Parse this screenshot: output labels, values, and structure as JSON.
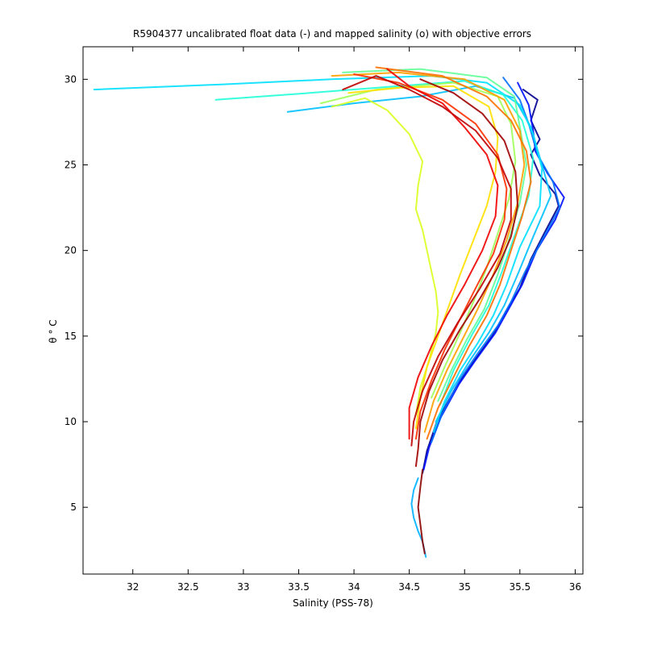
{
  "chart_data": {
    "type": "line",
    "title": "R5904377 uncalibrated float data (-) and mapped salinity (o) with objective errors",
    "xlabel": "Salinity (PSS-78)",
    "ylabel": "θ ° C",
    "xlim": [
      31.55,
      36.07
    ],
    "ylim": [
      1.1,
      31.9
    ],
    "xticks": [
      32,
      32.5,
      33,
      33.5,
      34,
      34.5,
      35,
      35.5,
      36
    ],
    "yticks": [
      5,
      10,
      15,
      20,
      25,
      30
    ],
    "xtick_labels": [
      "32",
      "32.5",
      "33",
      "33.5",
      "34",
      "34.5",
      "35",
      "35.5",
      "36"
    ],
    "ytick_labels": [
      "5",
      "10",
      "15",
      "20",
      "25",
      "30"
    ],
    "grid": false,
    "colormap": "jet",
    "series": [
      {
        "color": "#00008f",
        "points": [
          [
            35.53,
            29.4
          ],
          [
            35.66,
            28.8
          ],
          [
            35.6,
            27.6
          ],
          [
            35.68,
            26.5
          ],
          [
            35.6,
            25.6
          ],
          [
            35.68,
            24.4
          ],
          [
            35.82,
            23.3
          ],
          [
            35.85,
            22.6
          ],
          [
            35.72,
            21.0
          ],
          [
            35.6,
            19.5
          ],
          [
            35.5,
            17.8
          ],
          [
            35.38,
            16.5
          ],
          [
            35.25,
            15.0
          ],
          [
            35.08,
            13.5
          ],
          [
            34.92,
            12.0
          ],
          [
            34.75,
            10.0
          ],
          [
            34.66,
            8.3
          ],
          [
            34.62,
            7.0
          ]
        ]
      },
      {
        "color": "#0010ff",
        "points": [
          [
            35.48,
            29.8
          ],
          [
            35.58,
            28.5
          ],
          [
            35.62,
            27.0
          ],
          [
            35.64,
            25.8
          ],
          [
            35.75,
            24.5
          ],
          [
            35.9,
            23.1
          ],
          [
            35.82,
            21.8
          ],
          [
            35.65,
            20.0
          ],
          [
            35.52,
            18.0
          ],
          [
            35.4,
            16.6
          ],
          [
            35.28,
            15.2
          ],
          [
            35.1,
            13.6
          ],
          [
            34.95,
            12.2
          ],
          [
            34.78,
            10.2
          ],
          [
            34.68,
            8.5
          ],
          [
            34.63,
            7.2
          ]
        ]
      },
      {
        "color": "#0070ff",
        "points": [
          [
            35.35,
            30.1
          ],
          [
            35.5,
            28.8
          ],
          [
            35.58,
            27.4
          ],
          [
            35.66,
            25.6
          ],
          [
            35.8,
            24.0
          ],
          [
            35.86,
            22.5
          ],
          [
            35.7,
            20.6
          ],
          [
            35.55,
            18.8
          ],
          [
            35.42,
            17.0
          ],
          [
            35.3,
            15.6
          ],
          [
            35.12,
            14.0
          ],
          [
            34.96,
            12.5
          ],
          [
            34.8,
            10.5
          ],
          [
            34.7,
            8.8
          ]
        ]
      },
      {
        "color": "#00c0ff",
        "points": [
          [
            33.4,
            28.1
          ],
          [
            34.0,
            28.6
          ],
          [
            34.6,
            29.0
          ],
          [
            35.1,
            29.6
          ],
          [
            35.45,
            28.9
          ],
          [
            35.6,
            27.2
          ],
          [
            35.7,
            25.0
          ],
          [
            35.78,
            23.2
          ],
          [
            35.62,
            20.8
          ],
          [
            35.48,
            18.6
          ],
          [
            35.36,
            16.8
          ],
          [
            35.22,
            15.2
          ],
          [
            35.05,
            13.6
          ],
          [
            34.88,
            11.8
          ],
          [
            34.74,
            10.0
          ]
        ]
      },
      {
        "color": "#00e0ff",
        "points": [
          [
            31.65,
            29.4
          ],
          [
            32.8,
            29.7
          ],
          [
            33.8,
            30.0
          ],
          [
            34.7,
            30.2
          ],
          [
            35.2,
            29.8
          ],
          [
            35.5,
            28.5
          ],
          [
            35.62,
            26.8
          ],
          [
            35.7,
            24.8
          ],
          [
            35.68,
            22.6
          ],
          [
            35.5,
            20.2
          ],
          [
            35.38,
            18.0
          ],
          [
            35.26,
            16.2
          ],
          [
            35.12,
            14.6
          ],
          [
            34.96,
            13.0
          ],
          [
            34.82,
            11.2
          ],
          [
            34.72,
            9.4
          ]
        ]
      },
      {
        "color": "#20ffd8",
        "points": [
          [
            32.75,
            28.8
          ],
          [
            33.6,
            29.2
          ],
          [
            34.4,
            29.6
          ],
          [
            35.0,
            29.9
          ],
          [
            35.35,
            29.1
          ],
          [
            35.52,
            27.6
          ],
          [
            35.62,
            25.4
          ],
          [
            35.58,
            23.2
          ],
          [
            35.46,
            21.0
          ],
          [
            35.34,
            18.8
          ],
          [
            35.22,
            16.8
          ],
          [
            35.06,
            15.0
          ],
          [
            34.9,
            13.0
          ],
          [
            34.78,
            11.0
          ]
        ]
      },
      {
        "color": "#60ff98",
        "points": [
          [
            33.9,
            30.4
          ],
          [
            34.6,
            30.6
          ],
          [
            35.2,
            30.1
          ],
          [
            35.45,
            29.0
          ],
          [
            35.5,
            27.2
          ],
          [
            35.56,
            25.0
          ],
          [
            35.5,
            22.8
          ],
          [
            35.4,
            20.6
          ],
          [
            35.3,
            18.6
          ],
          [
            35.18,
            16.6
          ],
          [
            35.02,
            14.8
          ],
          [
            34.88,
            13.0
          ],
          [
            34.76,
            11.2
          ]
        ]
      },
      {
        "color": "#a0ff58",
        "points": [
          [
            33.7,
            28.6
          ],
          [
            34.2,
            29.4
          ],
          [
            34.9,
            29.8
          ],
          [
            35.3,
            29.0
          ],
          [
            35.42,
            27.4
          ],
          [
            35.46,
            25.2
          ],
          [
            35.4,
            23.0
          ],
          [
            35.3,
            21.0
          ],
          [
            35.2,
            19.0
          ],
          [
            35.08,
            17.0
          ],
          [
            34.96,
            15.2
          ],
          [
            34.82,
            13.2
          ],
          [
            34.7,
            11.4
          ]
        ]
      },
      {
        "color": "#d8ff20",
        "points": [
          [
            33.8,
            28.4
          ],
          [
            34.1,
            28.9
          ],
          [
            34.3,
            28.2
          ],
          [
            34.5,
            26.8
          ],
          [
            34.62,
            25.2
          ],
          [
            34.58,
            23.8
          ],
          [
            34.56,
            22.4
          ],
          [
            34.62,
            21.2
          ],
          [
            34.66,
            20.0
          ],
          [
            34.7,
            18.8
          ],
          [
            34.74,
            17.6
          ],
          [
            34.76,
            16.4
          ],
          [
            34.74,
            15.2
          ],
          [
            34.68,
            13.6
          ],
          [
            34.6,
            12.0
          ],
          [
            34.56,
            10.4
          ]
        ]
      },
      {
        "color": "#ffe000",
        "points": [
          [
            33.95,
            29.2
          ],
          [
            34.4,
            29.5
          ],
          [
            34.9,
            29.6
          ],
          [
            35.22,
            28.4
          ],
          [
            35.3,
            26.6
          ],
          [
            35.28,
            24.6
          ],
          [
            35.2,
            22.6
          ],
          [
            35.08,
            20.6
          ],
          [
            34.96,
            18.6
          ],
          [
            34.86,
            16.8
          ],
          [
            34.76,
            15.0
          ],
          [
            34.66,
            13.2
          ],
          [
            34.6,
            11.4
          ],
          [
            34.56,
            9.6
          ]
        ]
      },
      {
        "color": "#ffa000",
        "points": [
          [
            33.8,
            30.2
          ],
          [
            34.4,
            30.4
          ],
          [
            35.0,
            30.0
          ],
          [
            35.36,
            28.8
          ],
          [
            35.5,
            27.0
          ],
          [
            35.54,
            25.0
          ],
          [
            35.48,
            22.8
          ],
          [
            35.38,
            20.6
          ],
          [
            35.26,
            18.6
          ],
          [
            35.12,
            16.6
          ],
          [
            34.98,
            14.8
          ],
          [
            34.84,
            13.0
          ],
          [
            34.72,
            11.2
          ],
          [
            34.64,
            9.4
          ]
        ]
      },
      {
        "color": "#ff7000",
        "points": [
          [
            34.2,
            30.7
          ],
          [
            34.8,
            30.2
          ],
          [
            35.2,
            29.0
          ],
          [
            35.42,
            27.6
          ],
          [
            35.56,
            25.8
          ],
          [
            35.6,
            24.0
          ],
          [
            35.52,
            22.0
          ],
          [
            35.42,
            20.0
          ],
          [
            35.32,
            18.0
          ],
          [
            35.2,
            16.2
          ],
          [
            35.04,
            14.4
          ],
          [
            34.9,
            12.6
          ],
          [
            34.76,
            10.8
          ],
          [
            34.66,
            9.0
          ]
        ]
      },
      {
        "color": "#ff3000",
        "points": [
          [
            34.0,
            30.3
          ],
          [
            34.4,
            29.8
          ],
          [
            34.8,
            28.8
          ],
          [
            35.1,
            27.4
          ],
          [
            35.3,
            25.6
          ],
          [
            35.38,
            23.6
          ],
          [
            35.36,
            21.8
          ],
          [
            35.26,
            19.8
          ],
          [
            35.1,
            17.8
          ],
          [
            34.96,
            16.0
          ],
          [
            34.82,
            14.2
          ],
          [
            34.7,
            12.4
          ],
          [
            34.6,
            10.6
          ],
          [
            34.56,
            9.0
          ]
        ]
      },
      {
        "color": "#f00000",
        "points": [
          [
            34.3,
            30.6
          ],
          [
            34.5,
            29.6
          ],
          [
            34.8,
            28.6
          ],
          [
            35.0,
            27.2
          ],
          [
            35.2,
            25.6
          ],
          [
            35.3,
            23.8
          ],
          [
            35.28,
            22.0
          ],
          [
            35.16,
            20.0
          ],
          [
            35.0,
            18.0
          ],
          [
            34.84,
            16.2
          ],
          [
            34.7,
            14.4
          ],
          [
            34.58,
            12.6
          ],
          [
            34.5,
            10.8
          ],
          [
            34.5,
            9.0
          ]
        ]
      },
      {
        "color": "#c00000",
        "points": [
          [
            33.9,
            29.4
          ],
          [
            34.2,
            30.2
          ],
          [
            34.5,
            29.4
          ],
          [
            34.8,
            28.4
          ],
          [
            35.1,
            27.0
          ],
          [
            35.3,
            25.4
          ],
          [
            35.42,
            23.6
          ],
          [
            35.42,
            21.8
          ],
          [
            35.32,
            19.8
          ],
          [
            35.14,
            17.8
          ],
          [
            34.94,
            15.8
          ],
          [
            34.76,
            13.8
          ],
          [
            34.62,
            11.8
          ],
          [
            34.54,
            10.0
          ],
          [
            34.52,
            8.6
          ]
        ]
      },
      {
        "color": "#a00000",
        "points": [
          [
            34.6,
            30.0
          ],
          [
            34.9,
            29.2
          ],
          [
            35.16,
            28.0
          ],
          [
            35.36,
            26.4
          ],
          [
            35.46,
            24.6
          ],
          [
            35.48,
            22.6
          ],
          [
            35.42,
            20.8
          ],
          [
            35.3,
            19.0
          ],
          [
            35.14,
            17.2
          ],
          [
            34.96,
            15.4
          ],
          [
            34.8,
            13.6
          ],
          [
            34.68,
            11.8
          ],
          [
            34.6,
            10.0
          ],
          [
            34.58,
            8.4
          ],
          [
            34.56,
            7.4
          ]
        ]
      },
      {
        "color": "#00b0ff",
        "points": [
          [
            34.58,
            6.7
          ],
          [
            34.54,
            6.0
          ],
          [
            34.52,
            5.2
          ],
          [
            34.54,
            4.4
          ],
          [
            34.58,
            3.6
          ],
          [
            34.62,
            3.0
          ],
          [
            34.65,
            2.1
          ]
        ]
      },
      {
        "color": "#8b0000",
        "points": [
          [
            34.62,
            7.2
          ],
          [
            34.6,
            6.2
          ],
          [
            34.58,
            5.0
          ],
          [
            34.6,
            4.0
          ],
          [
            34.62,
            3.0
          ],
          [
            34.64,
            2.3
          ]
        ]
      }
    ]
  }
}
